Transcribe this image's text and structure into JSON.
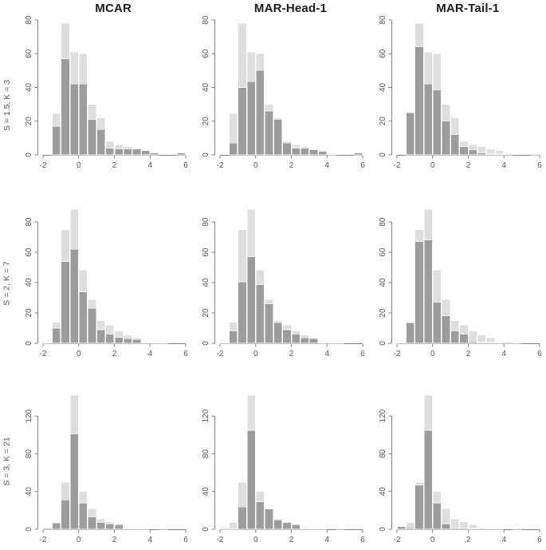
{
  "chart_data": {
    "type": "bar",
    "subtype": "overlaid-histogram-grid",
    "grid": "3 rows x 3 columns",
    "columns": [
      "MCAR",
      "MAR-Head-1",
      "MAR-Tail-1"
    ],
    "bin_start": -2,
    "bin_width": 0.5,
    "xlim": [
      -2,
      6
    ],
    "xticks": [
      -2,
      0,
      2,
      4,
      6
    ],
    "grid_lines": "off",
    "legend": "none",
    "series_style": {
      "light_gray_background_series": "#dedede",
      "dark_gray_foreground_series": "#9c9c9c"
    },
    "colors": {
      "light_bar": "#dedede",
      "dark_bar": "#9c9c9c",
      "bar_border": "#ffffff",
      "axis_line": "#808080",
      "tick_text": "#595959",
      "title_text": "#1b1b1b"
    },
    "rows": [
      {
        "label": "S = 1.5, K = 3",
        "yticks": [
          0,
          20,
          40,
          60,
          80
        ],
        "ymax_display": 80,
        "light": [
          0,
          24.5,
          78,
          61,
          60,
          30,
          22,
          8,
          6,
          5,
          3.5,
          2.5,
          1,
          0,
          0,
          1
        ],
        "dark": {
          "MCAR": [
            0,
            17,
            57,
            42,
            42,
            21,
            15,
            4,
            3.5,
            3.5,
            3.5,
            2.5,
            1,
            0,
            0,
            1
          ],
          "MAR-Head-1": [
            0,
            7,
            40,
            43.5,
            50,
            26,
            21,
            7,
            4,
            4,
            3,
            2,
            0.5,
            0,
            0,
            1
          ],
          "MAR-Tail-1": [
            0,
            25,
            64,
            42,
            38.5,
            20,
            12,
            5,
            3,
            1,
            0.5,
            0.5,
            0.5,
            0,
            0,
            0.5
          ]
        }
      },
      {
        "label": "S = 2, K = 7",
        "yticks": [
          0,
          20,
          40,
          60,
          80
        ],
        "ymax_display": 89,
        "light": [
          0.5,
          14,
          75,
          88.5,
          48.5,
          29,
          15,
          12,
          8,
          5.5,
          3.5,
          0.5,
          1,
          1,
          0,
          0
        ],
        "dark": {
          "MCAR": [
            0,
            10,
            54,
            62,
            34,
            23,
            9,
            6,
            4,
            3,
            2.5,
            0,
            0.5,
            0.5,
            0,
            0
          ],
          "MAR-Head-1": [
            0,
            8,
            40.5,
            57,
            38.5,
            26,
            13.5,
            9,
            6,
            3.5,
            3,
            0,
            0.5,
            0.5,
            0,
            0
          ],
          "MAR-Tail-1": [
            0.5,
            13.5,
            67,
            68,
            27,
            18,
            8,
            6,
            1,
            0.5,
            0.5,
            0,
            0,
            0.5,
            0,
            0
          ]
        }
      },
      {
        "label": "S = 3, K = 21",
        "yticks": [
          0,
          40,
          80,
          120
        ],
        "ymax_display": 143,
        "light": [
          2,
          7,
          50,
          142,
          40,
          22,
          11,
          8,
          5,
          1.5,
          1,
          0.5,
          0,
          1,
          0,
          0
        ],
        "dark": {
          "MCAR": [
            1,
            6.5,
            31,
            101,
            28,
            13,
            7,
            6,
            5,
            0.5,
            0.5,
            0,
            0,
            0,
            0,
            0
          ],
          "MAR-Head-1": [
            0.5,
            0.5,
            23.5,
            105,
            29,
            21.5,
            10,
            7,
            5,
            0.5,
            0.5,
            0,
            0,
            0,
            0,
            0
          ],
          "MAR-Tail-1": [
            3,
            1.5,
            47,
            105,
            28,
            6,
            1,
            1,
            0.5,
            0,
            0,
            0,
            0,
            0,
            0,
            0
          ]
        }
      }
    ]
  }
}
